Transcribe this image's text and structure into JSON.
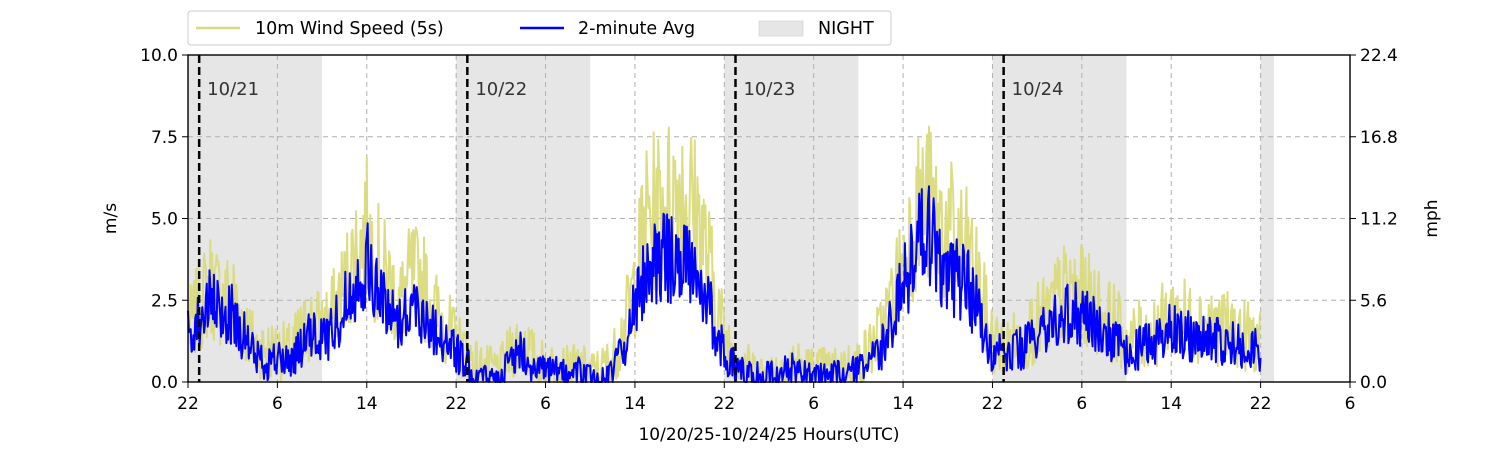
{
  "chart_data": {
    "type": "line",
    "xlabel": "10/20/25-10/24/25  Hours(UTC)",
    "ylabel_left": "m/s",
    "ylabel_right": "mph",
    "x_range_hours": [
      22,
      118
    ],
    "x_ticks": [
      {
        "hour": 22,
        "label": "22"
      },
      {
        "hour": 30,
        "label": "6"
      },
      {
        "hour": 38,
        "label": "14"
      },
      {
        "hour": 46,
        "label": "22"
      },
      {
        "hour": 54,
        "label": "6"
      },
      {
        "hour": 62,
        "label": "14"
      },
      {
        "hour": 70,
        "label": "22"
      },
      {
        "hour": 78,
        "label": "6"
      },
      {
        "hour": 86,
        "label": "14"
      },
      {
        "hour": 94,
        "label": "22"
      },
      {
        "hour": 102,
        "label": "6"
      },
      {
        "hour": 110,
        "label": "14"
      },
      {
        "hour": 118,
        "label": "22"
      },
      {
        "hour": 126,
        "label": "6"
      }
    ],
    "y_left_ticks": [
      "0.0",
      "2.5",
      "5.0",
      "7.5",
      "10.0"
    ],
    "y_left_range": [
      0,
      10
    ],
    "y_right_ticks": [
      "0.0",
      "5.6",
      "11.2",
      "16.8",
      "22.4"
    ],
    "grid": true,
    "legend": {
      "placement": "top-left",
      "items": [
        {
          "label": "10m Wind Speed (5s)",
          "color": "#dada7c",
          "kind": "line"
        },
        {
          "label": "2-minute Avg",
          "color": "#0000ff",
          "kind": "line"
        },
        {
          "label": "NIGHT",
          "color": "#e6e6e6",
          "kind": "patch"
        }
      ]
    },
    "night_periods_hours": [
      [
        22,
        34
      ],
      [
        46,
        58
      ],
      [
        70,
        82
      ],
      [
        94,
        106
      ],
      [
        118,
        119.2
      ]
    ],
    "date_markers": [
      {
        "hour": 23,
        "label": "10/21"
      },
      {
        "hour": 47,
        "label": "10/22"
      },
      {
        "hour": 71,
        "label": "10/23"
      },
      {
        "hour": 95,
        "label": "10/24"
      }
    ],
    "series": [
      {
        "name": "10m Wind Speed (5s)",
        "color": "#dada7c",
        "x_hours": [
          22,
          23,
          24,
          25,
          26,
          27,
          28,
          29,
          30,
          31,
          32,
          33,
          34,
          35,
          36,
          37,
          38,
          39,
          40,
          41,
          42,
          43,
          44,
          45,
          46,
          47,
          48,
          49,
          50,
          51,
          52,
          53,
          54,
          55,
          56,
          57,
          58,
          59,
          60,
          61,
          62,
          63,
          64,
          65,
          66,
          67,
          68,
          69,
          70,
          71,
          72,
          73,
          74,
          75,
          76,
          77,
          78,
          79,
          80,
          81,
          82,
          83,
          84,
          85,
          86,
          87,
          88,
          89,
          90,
          91,
          92,
          93,
          94,
          95,
          96,
          97,
          98,
          99,
          100,
          101,
          102,
          103,
          104,
          105,
          106,
          107,
          108,
          109,
          110,
          111,
          112,
          113,
          114,
          115,
          116,
          117,
          118
        ],
        "values": [
          1.6,
          2.3,
          3.0,
          2.5,
          2.6,
          1.8,
          1.1,
          1.0,
          1.0,
          0.9,
          1.4,
          1.8,
          1.7,
          2.1,
          2.9,
          3.9,
          4.6,
          3.6,
          3.0,
          2.4,
          3.2,
          3.0,
          2.2,
          1.8,
          1.2,
          0.9,
          0.5,
          0.4,
          0.4,
          1.0,
          1.3,
          0.7,
          0.5,
          0.5,
          0.4,
          0.5,
          0.3,
          0.4,
          0.7,
          1.6,
          3.0,
          5.0,
          5.2,
          5.5,
          6.0,
          5.5,
          4.6,
          3.0,
          1.4,
          0.9,
          0.5,
          0.3,
          0.3,
          0.4,
          0.6,
          0.5,
          0.4,
          0.4,
          0.4,
          0.5,
          0.6,
          1.0,
          1.5,
          2.5,
          3.6,
          5.0,
          5.6,
          4.9,
          4.6,
          4.2,
          3.8,
          2.6,
          1.3,
          1.0,
          1.2,
          1.5,
          1.8,
          2.0,
          2.6,
          2.8,
          2.6,
          2.4,
          2.0,
          1.8,
          1.2,
          1.4,
          1.5,
          1.7,
          2.1,
          2.0,
          1.8,
          1.9,
          1.7,
          1.6,
          1.5,
          1.4,
          1.2
        ]
      },
      {
        "name": "2-minute Avg",
        "color": "#0000ff",
        "x_hours": [
          22,
          23,
          24,
          25,
          26,
          27,
          28,
          29,
          30,
          31,
          32,
          33,
          34,
          35,
          36,
          37,
          38,
          39,
          40,
          41,
          42,
          43,
          44,
          45,
          46,
          47,
          48,
          49,
          50,
          51,
          52,
          53,
          54,
          55,
          56,
          57,
          58,
          59,
          60,
          61,
          62,
          63,
          64,
          65,
          66,
          67,
          68,
          69,
          70,
          71,
          72,
          73,
          74,
          75,
          76,
          77,
          78,
          79,
          80,
          81,
          82,
          83,
          84,
          85,
          86,
          87,
          88,
          89,
          90,
          91,
          92,
          93,
          94,
          95,
          96,
          97,
          98,
          99,
          100,
          101,
          102,
          103,
          104,
          105,
          106,
          107,
          108,
          109,
          110,
          111,
          112,
          113,
          114,
          115,
          116,
          117,
          118
        ],
        "values": [
          1.5,
          1.9,
          2.4,
          2.0,
          2.1,
          1.4,
          0.8,
          0.6,
          0.7,
          0.6,
          1.0,
          1.4,
          1.3,
          1.6,
          2.4,
          3.1,
          3.6,
          2.7,
          2.2,
          1.9,
          2.4,
          2.1,
          1.6,
          1.3,
          0.9,
          0.5,
          0.2,
          0.1,
          0.2,
          0.7,
          1.0,
          0.4,
          0.3,
          0.3,
          0.2,
          0.3,
          0.1,
          0.1,
          0.3,
          1.1,
          2.2,
          3.7,
          3.6,
          3.8,
          4.0,
          3.6,
          3.0,
          1.9,
          0.8,
          0.5,
          0.2,
          0.2,
          0.2,
          0.3,
          0.4,
          0.3,
          0.2,
          0.2,
          0.2,
          0.3,
          0.3,
          0.6,
          1.0,
          1.8,
          2.9,
          4.0,
          4.8,
          3.9,
          3.4,
          3.1,
          2.8,
          1.8,
          0.9,
          0.8,
          0.9,
          1.1,
          1.4,
          1.6,
          2.0,
          2.2,
          1.9,
          1.8,
          1.5,
          1.3,
          0.8,
          1.0,
          1.1,
          1.3,
          1.6,
          1.5,
          1.3,
          1.5,
          1.3,
          1.2,
          1.1,
          1.1,
          1.0
        ]
      }
    ]
  }
}
